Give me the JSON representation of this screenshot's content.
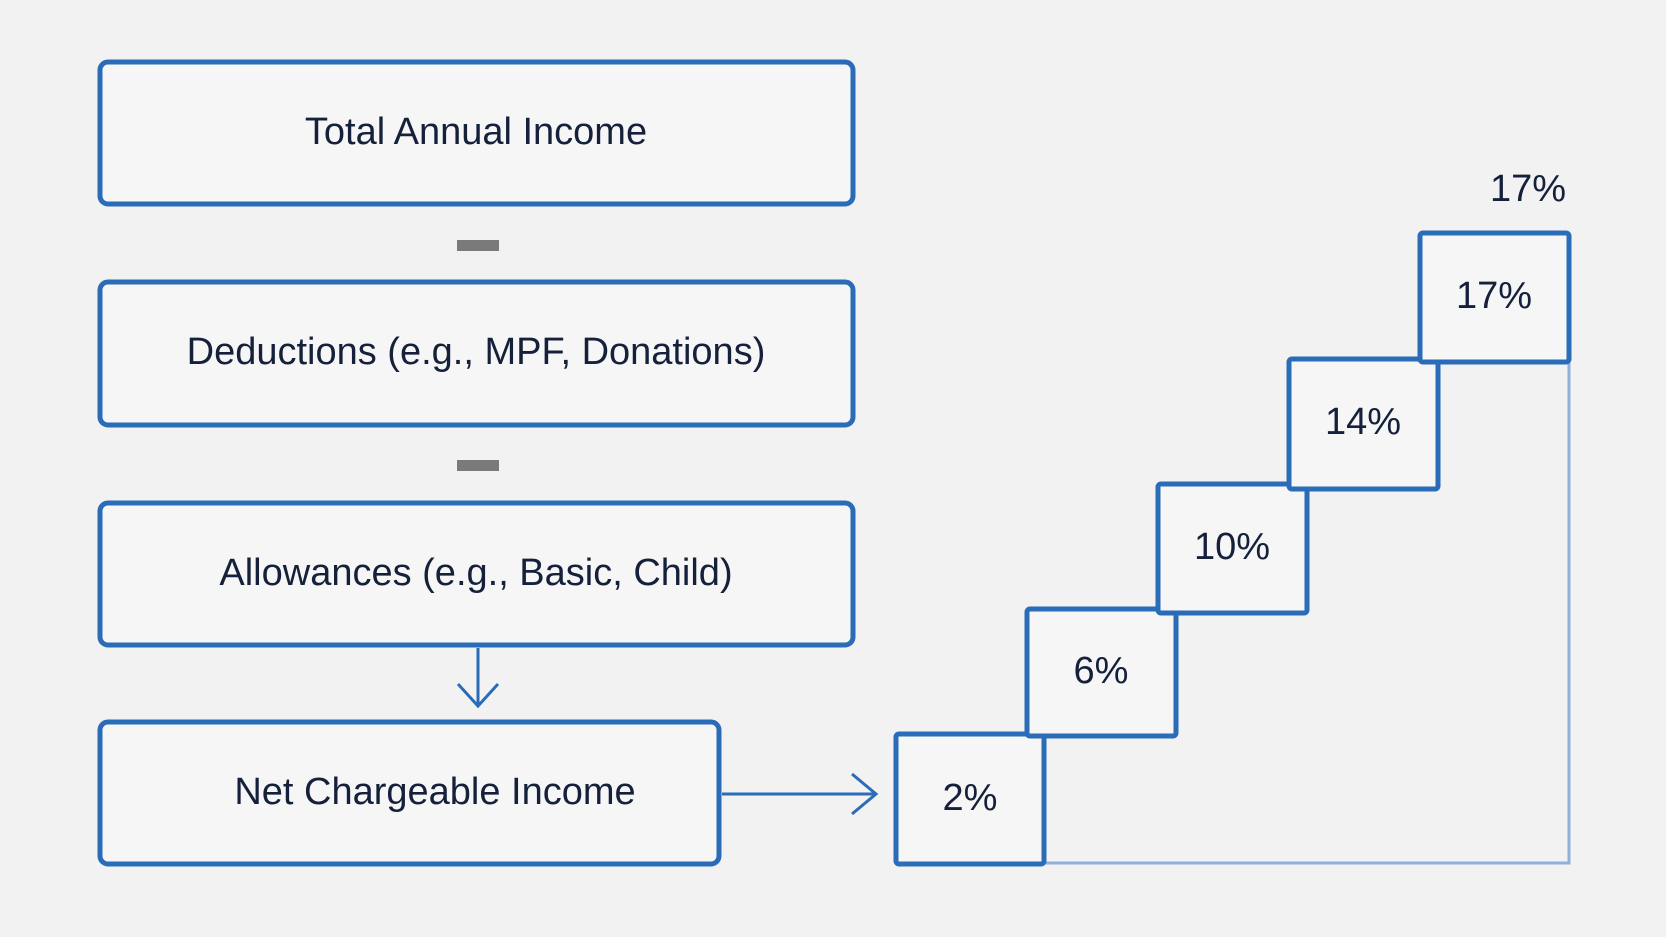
{
  "flow": [
    {
      "label": "Total Annual Income"
    },
    {
      "label": "Deductions (e.g., MPF, Donations)"
    },
    {
      "label": "Allowances (e.g., Basic, Child)"
    },
    {
      "label": "Net Chargeable Income"
    }
  ],
  "steps": [
    {
      "label": "2%"
    },
    {
      "label": "6%"
    },
    {
      "label": "10%"
    },
    {
      "label": "14%"
    },
    {
      "label": "17%"
    }
  ],
  "top_label": "17%"
}
